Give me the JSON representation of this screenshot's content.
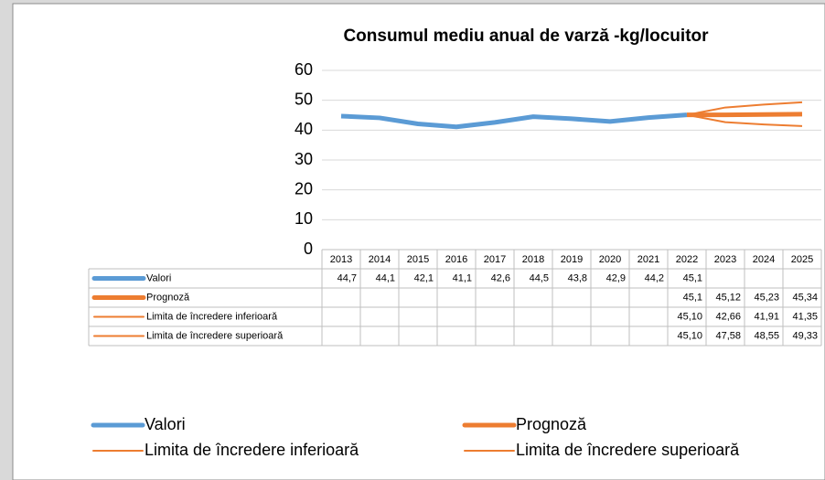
{
  "chart_data": {
    "type": "line",
    "title": "Consumul mediu anual de varză -kg/locuitor",
    "categories": [
      "2013",
      "2014",
      "2015",
      "2016",
      "2017",
      "2018",
      "2019",
      "2020",
      "2021",
      "2022",
      "2023",
      "2024",
      "2025"
    ],
    "series": [
      {
        "name": "Valori",
        "color": "#5b9bd5",
        "values": [
          44.7,
          44.1,
          42.1,
          41.1,
          42.6,
          44.5,
          43.8,
          42.9,
          44.2,
          45.1,
          null,
          null,
          null
        ],
        "value_labels": [
          "44,7",
          "44,1",
          "42,1",
          "41,1",
          "42,6",
          "44,5",
          "43,8",
          "42,9",
          "44,2",
          "45,1",
          null,
          null,
          null
        ]
      },
      {
        "name": "Prognoză",
        "color": "#ed7d31",
        "values": [
          null,
          null,
          null,
          null,
          null,
          null,
          null,
          null,
          null,
          45.1,
          45.12,
          45.23,
          45.34
        ],
        "value_labels": [
          null,
          null,
          null,
          null,
          null,
          null,
          null,
          null,
          null,
          "45,1",
          "45,12",
          "45,23",
          "45,34"
        ]
      },
      {
        "name": "Limita de încredere inferioară",
        "color": "#ed7d31",
        "values": [
          null,
          null,
          null,
          null,
          null,
          null,
          null,
          null,
          null,
          45.1,
          42.66,
          41.91,
          41.35
        ],
        "value_labels": [
          null,
          null,
          null,
          null,
          null,
          null,
          null,
          null,
          null,
          "45,10",
          "42,66",
          "41,91",
          "41,35"
        ]
      },
      {
        "name": "Limita de încredere superioară",
        "color": "#ed7d31",
        "values": [
          null,
          null,
          null,
          null,
          null,
          null,
          null,
          null,
          null,
          45.1,
          47.58,
          48.55,
          49.33
        ],
        "value_labels": [
          null,
          null,
          null,
          null,
          null,
          null,
          null,
          null,
          null,
          "45,10",
          "47,58",
          "48,55",
          "49,33"
        ]
      }
    ],
    "ylim": [
      0,
      60
    ],
    "yticks": [
      0,
      10,
      20,
      30,
      40,
      50,
      60
    ],
    "grid": true
  }
}
